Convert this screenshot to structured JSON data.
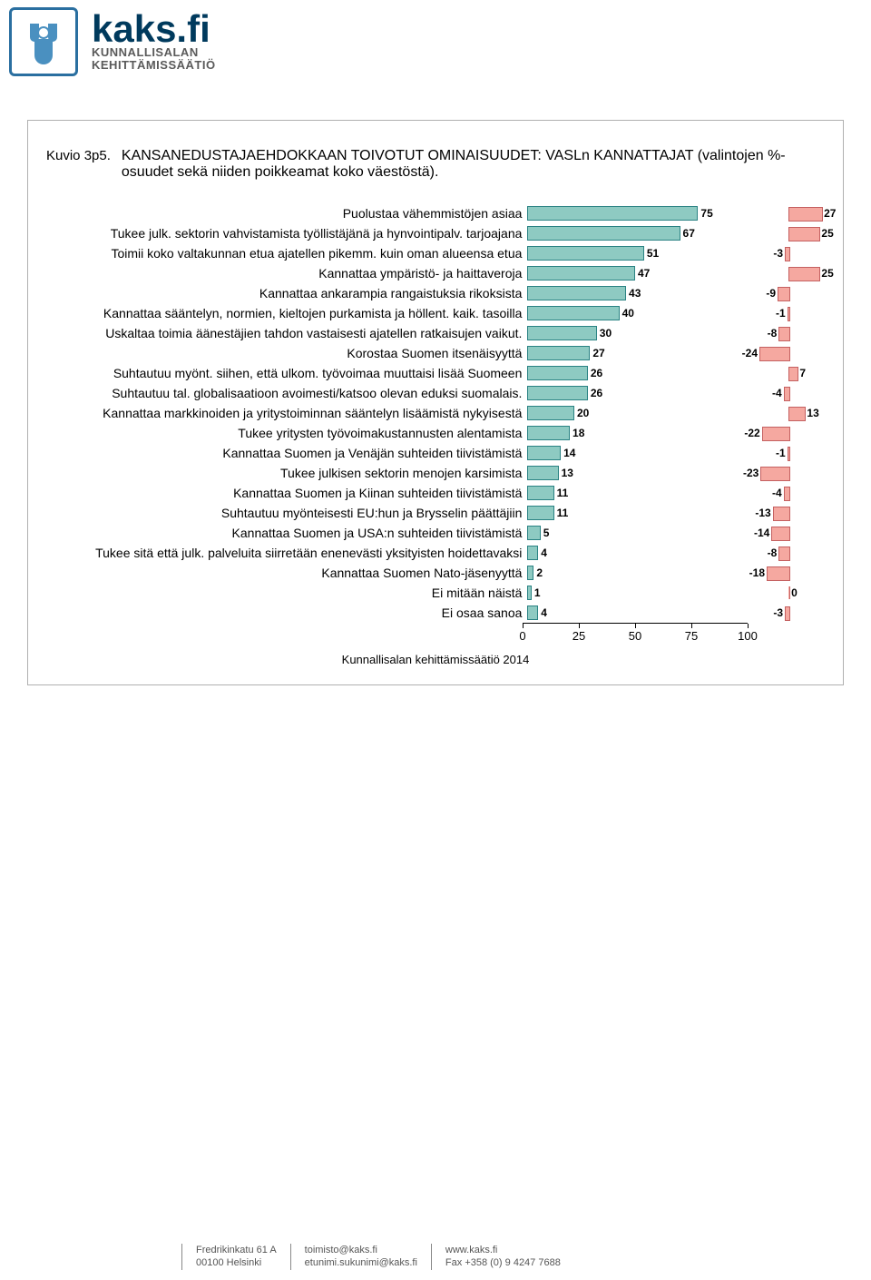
{
  "logo": {
    "main": "kaks.fi",
    "sub1": "KUNNALLISALAN",
    "sub2": "KEHITTÄMISSÄÄTIÖ"
  },
  "chart": {
    "type": "horizontal-bar-with-deviation",
    "figure_label": "Kuvio 3p5.",
    "title": "KANSANEDUSTAJAEHDOKKAAN TOIVOTUT OMINAISUUDET: VASLn KANNATTAJAT (valintojen %-osuudet sekä niiden poikkeamat koko väestöstä).",
    "footer": "Kunnallisalan kehittämissäätiö 2014",
    "main_bar_color": "#8ecac2",
    "main_bar_border": "#2a8283",
    "dev_bar_color": "#f5a8a0",
    "dev_bar_border": "#c46060",
    "background_color": "#ffffff",
    "label_fontsize": 14,
    "value_fontsize": 12,
    "x_axis": {
      "min": 0,
      "max": 100,
      "ticks": [
        0,
        25,
        50,
        75,
        100
      ]
    },
    "dev_axis": {
      "min": -30,
      "max": 30
    },
    "rows": [
      {
        "label": "Puolustaa vähemmistöjen asiaa",
        "value": 75,
        "dev": 27
      },
      {
        "label": "Tukee julk. sektorin vahvistamista työllistäjänä ja hynvointipalv. tarjoajana",
        "value": 67,
        "dev": 25
      },
      {
        "label": "Toimii koko valtakunnan etua ajatellen pikemm. kuin oman alueensa etua",
        "value": 51,
        "dev": -3
      },
      {
        "label": "Kannattaa ympäristö- ja haittaveroja",
        "value": 47,
        "dev": 25
      },
      {
        "label": "Kannattaa ankarampia rangaistuksia rikoksista",
        "value": 43,
        "dev": -9
      },
      {
        "label": "Kannattaa sääntelyn, normien, kieltojen purkamista ja höllent. kaik. tasoilla",
        "value": 40,
        "dev": -1
      },
      {
        "label": "Uskaltaa toimia äänestäjien tahdon vastaisesti ajatellen ratkaisujen vaikut.",
        "value": 30,
        "dev": -8
      },
      {
        "label": "Korostaa Suomen itsenäisyyttä",
        "value": 27,
        "dev": -24
      },
      {
        "label": "Suhtautuu myönt. siihen, että ulkom. työvoimaa muuttaisi lisää Suomeen",
        "value": 26,
        "dev": 7
      },
      {
        "label": "Suhtautuu tal. globalisaatioon avoimesti/katsoo olevan eduksi suomalais.",
        "value": 26,
        "dev": -4
      },
      {
        "label": "Kannattaa markkinoiden ja yritystoiminnan sääntelyn lisäämistä nykyisestä",
        "value": 20,
        "dev": 13
      },
      {
        "label": "Tukee yritysten työvoimakustannusten alentamista",
        "value": 18,
        "dev": -22
      },
      {
        "label": "Kannattaa Suomen ja Venäjän suhteiden tiivistämistä",
        "value": 14,
        "dev": -1
      },
      {
        "label": "Tukee julkisen sektorin menojen karsimista",
        "value": 13,
        "dev": -23
      },
      {
        "label": "Kannattaa Suomen ja Kiinan suhteiden tiivistämistä",
        "value": 11,
        "dev": -4
      },
      {
        "label": "Suhtautuu myönteisesti EU:hun ja Brysselin päättäjiin",
        "value": 11,
        "dev": -13
      },
      {
        "label": "Kannattaa Suomen ja USA:n suhteiden tiivistämistä",
        "value": 5,
        "dev": -14
      },
      {
        "label": "Tukee sitä että julk. palveluita siirretään enenevästi yksityisten hoidettavaksi",
        "value": 4,
        "dev": -8
      },
      {
        "label": "Kannattaa Suomen Nato-jäsenyyttä",
        "value": 2,
        "dev": -18
      },
      {
        "label": "Ei mitään näistä",
        "value": 1,
        "dev": 0
      },
      {
        "label": "Ei osaa sanoa",
        "value": 4,
        "dev": -3
      }
    ]
  },
  "footer": {
    "col1a": "Fredrikinkatu 61 A",
    "col1b": "00100 Helsinki",
    "col2a": "toimisto@kaks.fi",
    "col2b": "etunimi.sukunimi@kaks.fi",
    "col3a": "www.kaks.fi",
    "col3b": "Fax +358 (0) 9 4247 7688"
  }
}
